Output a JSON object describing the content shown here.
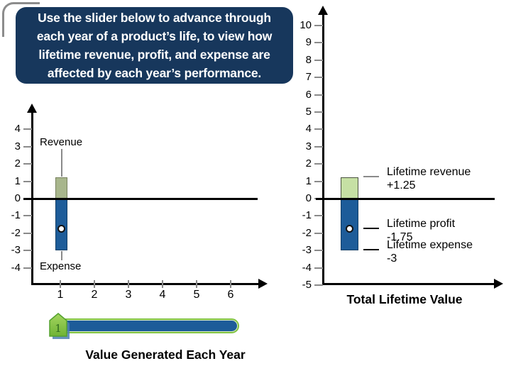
{
  "window": {
    "corner_border_color": "#8c8c8c"
  },
  "instruction": {
    "bg_color": "#17375c",
    "text_color": "#ffffff",
    "lines": [
      "Use the slider below to advance through",
      "each year of a product’s life, to view how",
      "lifetime revenue, profit, and expense are",
      "affected by each year’s performance."
    ]
  },
  "colors": {
    "axis": "#000000",
    "tick_gray": "#8a8a8a",
    "revenue_green_left": "#a8b68c",
    "revenue_green_left_border": "#78825f",
    "revenue_green_right": "#c6e0a4",
    "revenue_green_right_border": "#4a5240",
    "expense_blue": "#1d5c99",
    "expense_blue_border": "#113e66",
    "slider_green": "#7fc241",
    "slider_track_blue": "#1d5c99",
    "handle_glyph_green": "#2e6b1e",
    "handle_shadow_blue": "#4d7fb3"
  },
  "chart_data": [
    {
      "type": "bar",
      "title": "Value Generated Each Year",
      "y_ticks": [
        4,
        3,
        2,
        1,
        0,
        -1,
        -2,
        -3,
        -4
      ],
      "x_ticks": [
        1,
        2,
        3,
        4,
        5,
        6
      ],
      "ylim": [
        -4,
        4
      ],
      "xlim": [
        0,
        6.5
      ],
      "grid": false,
      "current_year": 1,
      "categories": [
        1
      ],
      "series": [
        {
          "name": "Revenue",
          "values": [
            1.25
          ],
          "color": "#a8b68c"
        },
        {
          "name": "Expense",
          "values": [
            -3
          ],
          "color": "#1d5c99"
        },
        {
          "name": "Profit",
          "values": [
            -1.75
          ],
          "marker": "white-circle"
        }
      ],
      "annotations": [
        {
          "text": "Revenue",
          "attaches_to": "bar-top"
        },
        {
          "text": "Expense",
          "attaches_to": "bar-bottom"
        }
      ]
    },
    {
      "type": "bar",
      "title": "Total Lifetime Value",
      "y_ticks": [
        10,
        9,
        8,
        7,
        6,
        5,
        4,
        3,
        2,
        1,
        0,
        -1,
        -2,
        -3,
        -4,
        -5
      ],
      "ylim": [
        -5,
        10
      ],
      "grid": false,
      "series": [
        {
          "name": "Lifetime revenue",
          "values": [
            1.25
          ],
          "color": "#c6e0a4",
          "label": "Lifetime revenue",
          "value_label": "+1.25",
          "leader_color": "#8a8a8a"
        },
        {
          "name": "Lifetime profit",
          "values": [
            -1.75
          ],
          "marker": "white-circle",
          "label": "Lifetime profit",
          "value_label": "-1.75",
          "leader_color": "#000000"
        },
        {
          "name": "Lifetime expense",
          "values": [
            -3
          ],
          "color": "#1d5c99",
          "label": "Lifetime expense",
          "value_label": "-3",
          "leader_color": "#000000"
        }
      ]
    }
  ],
  "slider": {
    "min": 1,
    "max": 6,
    "value": 1,
    "handle_label": "1"
  }
}
